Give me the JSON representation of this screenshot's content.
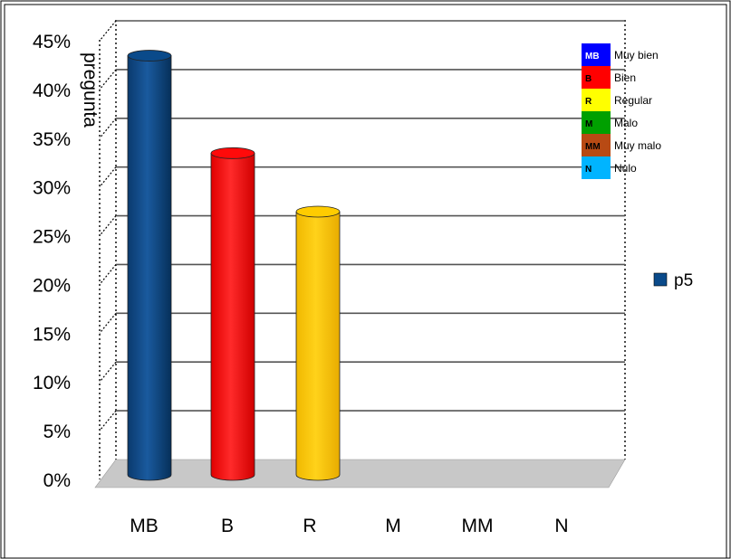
{
  "chart_data": {
    "type": "bar",
    "categories": [
      "MB",
      "B",
      "R",
      "M",
      "MM",
      "N"
    ],
    "series": [
      {
        "name": "p5",
        "values": [
          43,
          33,
          27,
          0,
          0,
          0
        ]
      }
    ],
    "bar_colors": [
      "#0a4a8a",
      "#ff0a0a",
      "#ffcc00",
      "#0a8a0a",
      "#b84a14",
      "#0ab4ff"
    ],
    "ylabel": "pregunta",
    "ylim": [
      0,
      45
    ],
    "yticks": [
      "0%",
      "5%",
      "10%",
      "15%",
      "20%",
      "25%",
      "30%",
      "35%",
      "40%",
      "45%"
    ],
    "grid": true,
    "legend": {
      "position": "right",
      "entries": [
        "p5"
      ],
      "color": "#0a4a8a"
    },
    "key_table": [
      {
        "code": "MB",
        "label": "Muy bien",
        "color": "#0000ff",
        "text_color": "#ffffff"
      },
      {
        "code": "B",
        "label": "Bien",
        "color": "#ff0000",
        "text_color": "#000000"
      },
      {
        "code": "R",
        "label": "Regular",
        "color": "#ffff00",
        "text_color": "#000000"
      },
      {
        "code": "M",
        "label": "Malo",
        "color": "#00a000",
        "text_color": "#000000"
      },
      {
        "code": "MM",
        "label": "Muy malo",
        "color": "#b84a14",
        "text_color": "#000000"
      },
      {
        "code": "N",
        "label": "Nulo",
        "color": "#00b4ff",
        "text_color": "#000000"
      }
    ]
  }
}
